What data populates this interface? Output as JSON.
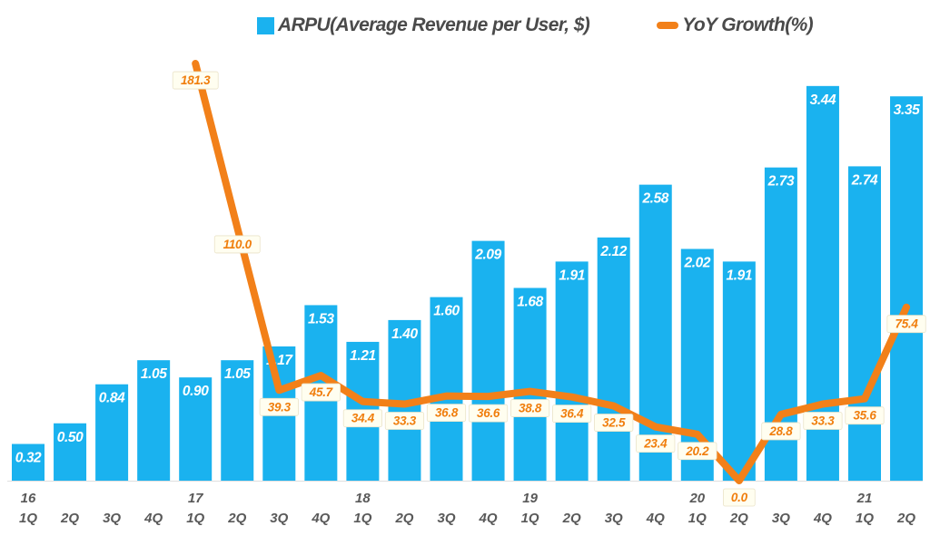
{
  "colors": {
    "bar": "#1ab2ef",
    "line": "#f28019",
    "bar_value_text": "#ffffff",
    "yoy_value_text": "#f07e0d",
    "yoy_label_bg": "#fffef0",
    "yoy_label_border": "#eae3c8",
    "axis_text": "#595959",
    "legend_text": "#4a4a4a",
    "baseline": "#e0e0e0"
  },
  "chart_data": {
    "type": "bar+line combo",
    "legend_position": "top",
    "gridlines": false,
    "categories": [
      {
        "year": "16",
        "quarter": "1Q"
      },
      {
        "year": "",
        "quarter": "2Q"
      },
      {
        "year": "",
        "quarter": "3Q"
      },
      {
        "year": "",
        "quarter": "4Q"
      },
      {
        "year": "17",
        "quarter": "1Q"
      },
      {
        "year": "",
        "quarter": "2Q"
      },
      {
        "year": "",
        "quarter": "3Q"
      },
      {
        "year": "",
        "quarter": "4Q"
      },
      {
        "year": "18",
        "quarter": "1Q"
      },
      {
        "year": "",
        "quarter": "2Q"
      },
      {
        "year": "",
        "quarter": "3Q"
      },
      {
        "year": "",
        "quarter": "4Q"
      },
      {
        "year": "19",
        "quarter": "1Q"
      },
      {
        "year": "",
        "quarter": "2Q"
      },
      {
        "year": "",
        "quarter": "3Q"
      },
      {
        "year": "",
        "quarter": "4Q"
      },
      {
        "year": "20",
        "quarter": "1Q"
      },
      {
        "year": "",
        "quarter": "2Q"
      },
      {
        "year": "",
        "quarter": "3Q"
      },
      {
        "year": "",
        "quarter": "4Q"
      },
      {
        "year": "21",
        "quarter": "1Q"
      },
      {
        "year": "",
        "quarter": "2Q"
      }
    ],
    "series": [
      {
        "name": "ARPU(Average Revenue per User, $)",
        "type": "bar",
        "color": "#1ab2ef",
        "values": [
          0.32,
          0.5,
          0.84,
          1.05,
          0.9,
          1.05,
          1.17,
          1.53,
          1.21,
          1.4,
          1.6,
          2.09,
          1.68,
          1.91,
          2.12,
          2.58,
          2.02,
          1.91,
          2.73,
          3.44,
          2.74,
          3.35
        ]
      },
      {
        "name": "YoY Growth(%)",
        "type": "line",
        "color": "#f28019",
        "values": [
          null,
          null,
          null,
          null,
          181.3,
          110.0,
          39.3,
          45.7,
          34.4,
          33.3,
          36.8,
          36.6,
          38.8,
          36.4,
          32.5,
          23.4,
          20.2,
          0.0,
          28.8,
          33.3,
          35.6,
          75.4
        ]
      }
    ],
    "ylim_bar": [
      0,
      3.65
    ],
    "ylim_line": [
      0,
      181.3
    ]
  }
}
